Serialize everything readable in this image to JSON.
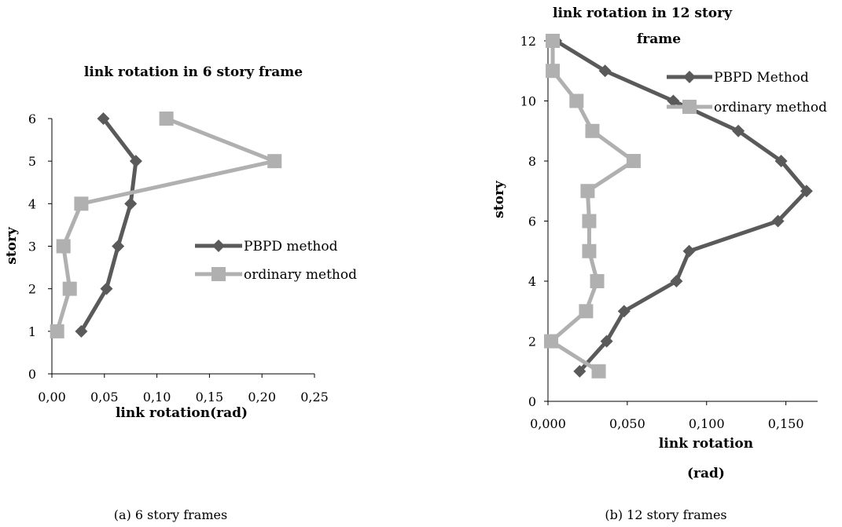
{
  "chart_data": [
    {
      "type": "line",
      "title": "link rotation in 6 story frame",
      "xlabel": "link rotation(rad)",
      "ylabel": "story",
      "xlim": [
        0,
        0.25
      ],
      "ylim": [
        0,
        6
      ],
      "x_ticks": [
        "0,00",
        "0,05",
        "0,10",
        "0,15",
        "0,20",
        "0,25"
      ],
      "y_ticks": [
        "0",
        "1",
        "2",
        "3",
        "4",
        "5",
        "6"
      ],
      "grid": false,
      "legend": "right",
      "series": [
        {
          "name": "PBPD method",
          "color": "#5a5a5a",
          "marker": "diamond",
          "x": [
            0.028,
            0.052,
            0.063,
            0.075,
            0.08,
            0.049
          ],
          "y": [
            1,
            2,
            3,
            4,
            5,
            6
          ]
        },
        {
          "name": "ordinary method",
          "color": "#b0b0b0",
          "marker": "square",
          "x": [
            0.005,
            0.017,
            0.011,
            0.028,
            0.212,
            0.109
          ],
          "y": [
            1,
            2,
            3,
            4,
            5,
            6
          ]
        }
      ],
      "caption": "(a) 6 story frames"
    },
    {
      "type": "line",
      "title": "link rotation in 12 story frame",
      "xlabel": "link rotation (rad)",
      "ylabel": "story",
      "xlim": [
        0,
        0.17
      ],
      "ylim": [
        0,
        12
      ],
      "x_ticks": [
        "0,000",
        "0,050",
        "0,100",
        "0,150"
      ],
      "y_ticks": [
        "0",
        "2",
        "4",
        "6",
        "8",
        "10",
        "12"
      ],
      "grid": false,
      "legend": "top-right",
      "series": [
        {
          "name": "PBPD Method",
          "color": "#5a5a5a",
          "marker": "diamond",
          "x": [
            0.02,
            0.037,
            0.048,
            0.081,
            0.089,
            0.145,
            0.163,
            0.147,
            0.12,
            0.079,
            0.036,
            0.005,
            0.002
          ],
          "y": [
            1,
            2,
            3,
            4,
            5,
            6,
            7,
            8,
            9,
            10,
            11,
            12,
            12
          ]
        },
        {
          "name": "ordinary method",
          "color": "#b0b0b0",
          "marker": "square",
          "x": [
            0.032,
            0.002,
            0.024,
            0.031,
            0.026,
            0.026,
            0.025,
            0.054,
            0.028,
            0.018,
            0.003,
            0.003
          ],
          "y": [
            1,
            2,
            3,
            4,
            5,
            6,
            7,
            8,
            9,
            10,
            11,
            12
          ]
        }
      ],
      "caption": "(b) 12 story frames"
    }
  ]
}
